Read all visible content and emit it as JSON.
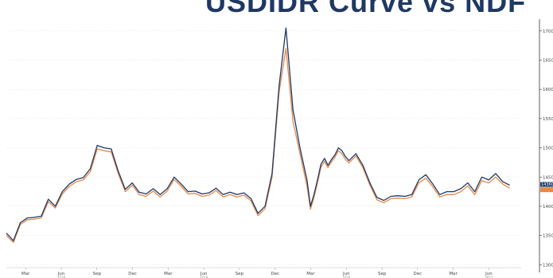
{
  "chart_data": {
    "type": "line",
    "title": "USDIDR Curve vs NDF",
    "xlabel": "",
    "ylabel": "",
    "x_ticks": [
      "Mar",
      "Jun",
      "Sep",
      "Dec",
      "Mar",
      "Jun",
      "Sep",
      "Dec",
      "Mar",
      "Jun",
      "Sep",
      "Dec",
      "Mar",
      "Jun"
    ],
    "year_labels": [
      {
        "label": "2018",
        "tick_index": 1
      },
      {
        "label": "2019",
        "tick_index": 5
      },
      {
        "label": "2020",
        "tick_index": 9
      },
      {
        "label": "2021",
        "tick_index": 13
      }
    ],
    "y_ticks": [
      13000,
      13500,
      14000,
      14500,
      15000,
      15500,
      16000,
      16500,
      17000
    ],
    "ylim": [
      12950,
      17120
    ],
    "xlim": [
      0,
      145
    ],
    "last_value_label": "14360.0",
    "series": [
      {
        "name": "",
        "color": "#1f3864",
        "x": [
          0,
          2,
          4,
          6,
          8,
          10,
          12,
          14,
          16,
          18,
          20,
          22,
          24,
          26,
          28,
          30,
          32,
          34,
          36,
          38,
          40,
          42,
          44,
          46,
          48,
          50,
          52,
          54,
          56,
          58,
          60,
          62,
          64,
          66,
          68,
          70,
          72,
          74,
          76,
          78,
          80,
          82,
          84,
          86,
          87,
          88,
          89,
          90,
          91,
          92,
          93,
          94,
          95,
          96,
          97,
          98,
          100,
          102,
          104,
          106,
          108,
          110,
          112,
          114,
          116,
          118,
          120,
          122,
          124,
          126,
          128,
          130,
          132,
          134,
          136,
          138,
          140,
          142,
          144
        ],
        "y": [
          13540,
          13410,
          13720,
          13800,
          13810,
          13830,
          14120,
          14000,
          14250,
          14380,
          14460,
          14490,
          14640,
          15040,
          15000,
          14980,
          14600,
          14290,
          14400,
          14240,
          14210,
          14300,
          14200,
          14300,
          14500,
          14380,
          14250,
          14260,
          14210,
          14230,
          14310,
          14200,
          14240,
          14200,
          14230,
          14130,
          13880,
          14000,
          14560,
          16050,
          17050,
          15650,
          15000,
          14450,
          14000,
          14200,
          14450,
          14720,
          14820,
          14700,
          14800,
          14880,
          15000,
          14950,
          14850,
          14780,
          14900,
          14700,
          14400,
          14150,
          14100,
          14170,
          14180,
          14170,
          14200,
          14450,
          14540,
          14380,
          14200,
          14250,
          14250,
          14300,
          14400,
          14250,
          14500,
          14450,
          14560,
          14420,
          14360
        ]
      },
      {
        "name": "",
        "color": "#e4894a",
        "x": [
          0,
          2,
          4,
          6,
          8,
          10,
          12,
          14,
          16,
          18,
          20,
          22,
          24,
          26,
          28,
          30,
          32,
          34,
          36,
          38,
          40,
          42,
          44,
          46,
          48,
          50,
          52,
          54,
          56,
          58,
          60,
          62,
          64,
          66,
          68,
          70,
          72,
          74,
          76,
          78,
          80,
          82,
          84,
          86,
          87,
          88,
          89,
          90,
          91,
          92,
          93,
          94,
          95,
          96,
          97,
          98,
          100,
          102,
          104,
          106,
          108,
          110,
          112,
          114,
          116,
          118,
          120,
          122,
          124,
          126,
          128,
          130,
          132,
          134,
          136,
          138,
          140,
          142,
          144
        ],
        "y": [
          13500,
          13380,
          13690,
          13770,
          13780,
          13800,
          14080,
          13970,
          14210,
          14340,
          14420,
          14450,
          14590,
          14980,
          14950,
          14930,
          14560,
          14250,
          14360,
          14200,
          14170,
          14260,
          14160,
          14260,
          14460,
          14340,
          14210,
          14220,
          14170,
          14190,
          14270,
          14160,
          14200,
          14160,
          14190,
          14090,
          13840,
          13960,
          14500,
          15950,
          16700,
          15450,
          14900,
          14350,
          13950,
          14150,
          14400,
          14670,
          14770,
          14660,
          14760,
          14840,
          14950,
          14900,
          14800,
          14740,
          14860,
          14660,
          14360,
          14110,
          14060,
          14130,
          14140,
          14130,
          14160,
          14400,
          14480,
          14330,
          14160,
          14200,
          14200,
          14250,
          14350,
          14200,
          14440,
          14400,
          14500,
          14380,
          14310
        ]
      }
    ]
  }
}
